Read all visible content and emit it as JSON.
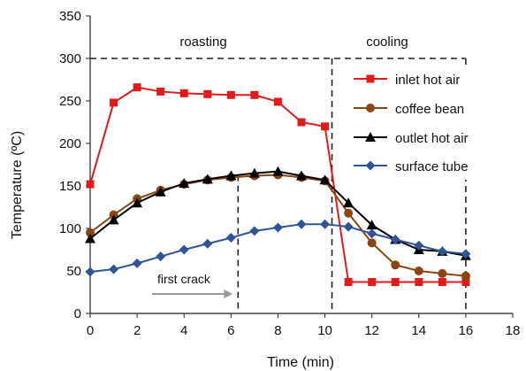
{
  "chart_data": {
    "type": "line",
    "xlabel": "Time (min)",
    "ylabel": "Temperature (ºC)",
    "xlim": [
      0,
      18
    ],
    "ylim": [
      0,
      350
    ],
    "x_ticks": [
      0,
      2,
      4,
      6,
      8,
      10,
      12,
      14,
      16,
      18
    ],
    "y_ticks": [
      0,
      50,
      100,
      150,
      200,
      250,
      300,
      350
    ],
    "grid": false,
    "legend_position": "right",
    "x": [
      0,
      1,
      2,
      3,
      4,
      5,
      6,
      7,
      8,
      9,
      10,
      11,
      12,
      13,
      14,
      15,
      16
    ],
    "series": [
      {
        "name": "inlet hot air",
        "color": "#e31a1c",
        "marker": "square",
        "values": [
          152,
          248,
          266,
          261,
          259,
          258,
          257,
          257,
          249,
          225,
          220,
          37,
          37,
          37,
          37,
          37,
          37
        ]
      },
      {
        "name": "coffee bean",
        "color": "#8b4513",
        "marker": "circle",
        "values": [
          95,
          116,
          135,
          145,
          152,
          157,
          160,
          162,
          163,
          160,
          156,
          118,
          83,
          57,
          50,
          47,
          44
        ]
      },
      {
        "name": "outlet hot air",
        "color": "#000000",
        "marker": "triangle",
        "values": [
          88,
          110,
          130,
          143,
          153,
          158,
          162,
          165,
          167,
          162,
          157,
          130,
          104,
          87,
          75,
          73,
          68
        ]
      },
      {
        "name": "surface tube",
        "color": "#2f5597",
        "marker": "diamond",
        "values": [
          49,
          52,
          59,
          67,
          75,
          82,
          89,
          97,
          101,
          105,
          105,
          102,
          94,
          87,
          80,
          73,
          70
        ]
      }
    ],
    "annotations": {
      "roasting": "roasting",
      "cooling": "cooling",
      "first_crack": "first crack"
    },
    "reference_lines": {
      "first_crack_x": 6.3,
      "cooling_start_x": 10.3,
      "end_x": 16,
      "phase_top_y": 300
    }
  }
}
